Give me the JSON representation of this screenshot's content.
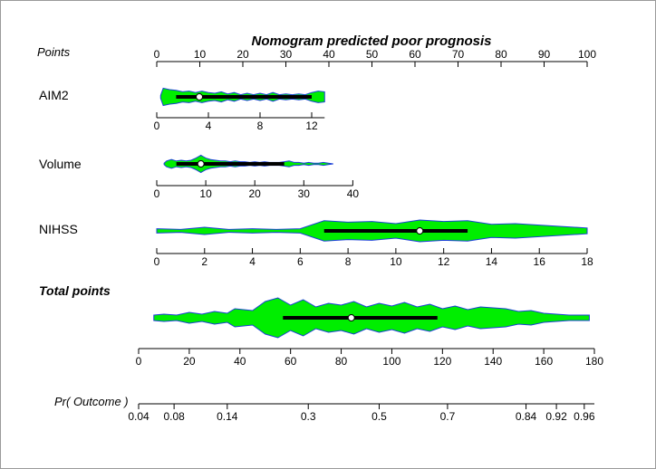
{
  "chart_data": {
    "type": "nomogram",
    "title": "Nomogram predicted poor prognosis",
    "points_axis": {
      "label": "Points",
      "range": [
        0,
        100
      ],
      "ticks": [
        0,
        10,
        20,
        30,
        40,
        50,
        60,
        70,
        80,
        90,
        100
      ]
    },
    "variables": [
      {
        "name": "AIM2",
        "range": [
          0,
          13
        ],
        "points_range": [
          0,
          39
        ],
        "ticks": [
          0,
          4,
          8,
          12
        ],
        "tick_labels": [
          "0",
          "4",
          "8",
          "12"
        ],
        "box": [
          1.5,
          12.0
        ],
        "median": 3.3,
        "density": [
          [
            0.3,
            2
          ],
          [
            0.5,
            12
          ],
          [
            1.0,
            10
          ],
          [
            1.5,
            9
          ],
          [
            2.0,
            7
          ],
          [
            2.5,
            8
          ],
          [
            3.0,
            6
          ],
          [
            3.5,
            8
          ],
          [
            4.0,
            6
          ],
          [
            4.5,
            5
          ],
          [
            5.0,
            7
          ],
          [
            5.5,
            4
          ],
          [
            6.0,
            6
          ],
          [
            6.5,
            3
          ],
          [
            7.0,
            5
          ],
          [
            7.5,
            3
          ],
          [
            8.0,
            5
          ],
          [
            8.5,
            3
          ],
          [
            9.0,
            6
          ],
          [
            9.5,
            3
          ],
          [
            10.0,
            4
          ],
          [
            10.5,
            3
          ],
          [
            11.0,
            4
          ],
          [
            11.5,
            3
          ],
          [
            12.0,
            6
          ],
          [
            12.5,
            8
          ],
          [
            13.0,
            7
          ]
        ]
      },
      {
        "name": "Volume",
        "range": [
          0,
          36
        ],
        "points_range": [
          0,
          41
        ],
        "ticks": [
          0,
          10,
          20,
          30,
          40
        ],
        "tick_labels": [
          "0",
          "10",
          "20",
          "30",
          "40"
        ],
        "box": [
          4.0,
          26.0
        ],
        "median": 9.0,
        "density": [
          [
            1.5,
            1
          ],
          [
            2.0,
            4
          ],
          [
            3.0,
            6
          ],
          [
            4.0,
            4
          ],
          [
            5.0,
            5
          ],
          [
            6.0,
            4
          ],
          [
            7.0,
            5
          ],
          [
            8.0,
            8
          ],
          [
            8.5,
            10
          ],
          [
            9.0,
            12
          ],
          [
            9.5,
            10
          ],
          [
            10.0,
            8
          ],
          [
            11.0,
            6
          ],
          [
            12.0,
            5
          ],
          [
            13.0,
            4
          ],
          [
            14.0,
            4
          ],
          [
            15.0,
            3
          ],
          [
            16.0,
            4
          ],
          [
            17.0,
            3
          ],
          [
            18.0,
            3
          ],
          [
            19.0,
            2
          ],
          [
            20.0,
            3
          ],
          [
            21.0,
            2
          ],
          [
            22.0,
            3
          ],
          [
            23.0,
            2
          ],
          [
            24.0,
            2
          ],
          [
            25.0,
            2
          ],
          [
            26.0,
            3
          ],
          [
            27.0,
            4
          ],
          [
            28.0,
            2
          ],
          [
            29.0,
            2
          ],
          [
            30.0,
            1
          ],
          [
            31.0,
            2
          ],
          [
            32.0,
            1
          ],
          [
            33.0,
            1
          ],
          [
            34.0,
            2
          ],
          [
            35.0,
            1
          ],
          [
            36.0,
            0
          ]
        ]
      },
      {
        "name": "NIHSS",
        "range": [
          0,
          18
        ],
        "points_range": [
          0,
          100
        ],
        "ticks": [
          0,
          2,
          4,
          6,
          8,
          10,
          12,
          14,
          16,
          18
        ],
        "tick_labels": [
          "0",
          "2",
          "4",
          "6",
          "8",
          "10",
          "12",
          "14",
          "16",
          "18"
        ],
        "box": [
          7,
          13
        ],
        "median": 11,
        "density": [
          [
            0,
            3
          ],
          [
            1,
            2
          ],
          [
            2,
            5
          ],
          [
            3,
            2
          ],
          [
            4,
            3
          ],
          [
            5,
            2
          ],
          [
            6,
            3
          ],
          [
            7,
            14
          ],
          [
            8,
            12
          ],
          [
            9,
            13
          ],
          [
            10,
            10
          ],
          [
            11,
            15
          ],
          [
            12,
            13
          ],
          [
            13,
            14
          ],
          [
            14,
            9
          ],
          [
            15,
            10
          ],
          [
            16,
            8
          ],
          [
            17,
            6
          ],
          [
            18,
            4
          ]
        ]
      }
    ],
    "total_points": {
      "label": "Total points",
      "range": [
        0,
        180
      ],
      "ticks": [
        0,
        20,
        40,
        60,
        80,
        100,
        120,
        140,
        160,
        180
      ],
      "box": [
        57,
        118
      ],
      "median": 84,
      "density": [
        [
          6,
          3
        ],
        [
          10,
          4
        ],
        [
          15,
          3
        ],
        [
          20,
          6
        ],
        [
          25,
          4
        ],
        [
          30,
          7
        ],
        [
          35,
          5
        ],
        [
          38,
          10
        ],
        [
          45,
          8
        ],
        [
          50,
          18
        ],
        [
          55,
          22
        ],
        [
          60,
          14
        ],
        [
          65,
          20
        ],
        [
          70,
          12
        ],
        [
          75,
          16
        ],
        [
          80,
          14
        ],
        [
          85,
          18
        ],
        [
          90,
          12
        ],
        [
          95,
          16
        ],
        [
          100,
          13
        ],
        [
          105,
          17
        ],
        [
          110,
          12
        ],
        [
          115,
          15
        ],
        [
          120,
          10
        ],
        [
          125,
          13
        ],
        [
          130,
          9
        ],
        [
          135,
          12
        ],
        [
          140,
          11
        ],
        [
          145,
          10
        ],
        [
          150,
          7
        ],
        [
          155,
          8
        ],
        [
          160,
          5
        ],
        [
          165,
          4
        ],
        [
          170,
          3
        ],
        [
          178,
          3
        ]
      ]
    },
    "probability_axis": {
      "label": "Pr( Outcome )",
      "range": [
        0,
        180
      ],
      "ticks": [
        {
          "total": 0,
          "label": "0.04"
        },
        {
          "total": 14,
          "label": "0.08"
        },
        {
          "total": 35,
          "label": "0.14"
        },
        {
          "total": 67,
          "label": "0.3"
        },
        {
          "total": 95,
          "label": "0.5"
        },
        {
          "total": 122,
          "label": "0.7"
        },
        {
          "total": 153,
          "label": "0.84"
        },
        {
          "total": 165,
          "label": "0.92"
        },
        {
          "total": 176,
          "label": "0.96"
        }
      ]
    },
    "colors": {
      "violin_fill": "#00ee00",
      "violin_edge": "#1a3fd6",
      "box": "#000000",
      "median_point": "#ffffff"
    }
  }
}
